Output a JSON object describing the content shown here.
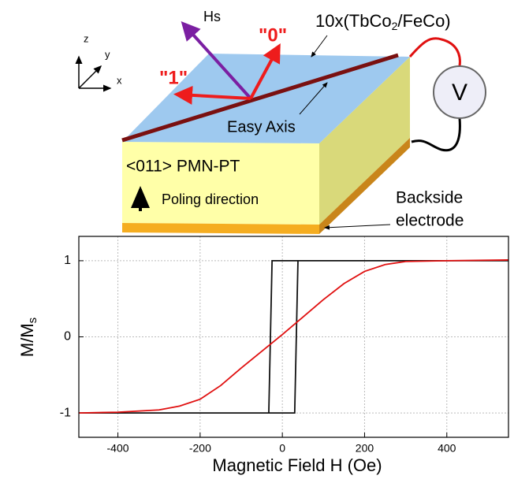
{
  "diagram": {
    "axis_z": "z",
    "axis_y": "y",
    "axis_x": "x",
    "hs_label": "Hs",
    "state_0": "\"0\"",
    "state_1": "\"1\"",
    "film_label": {
      "text": "10x(TbCo",
      "subscript": "2",
      "suffix": "/FeCo)"
    },
    "easy_axis": "Easy Axis",
    "substrate": "<011> PMN-PT",
    "poling": "Poling direction",
    "voltmeter": "V",
    "electrode_line1": "Backside",
    "electrode_line2": "electrode"
  },
  "chart_data": {
    "type": "line",
    "xlabel": "Magnetic Field H (Oe)",
    "ylabel": {
      "text": "M/M",
      "subscript": "s"
    },
    "xlim": [
      -495,
      550
    ],
    "ylim": [
      -1.32,
      1.32
    ],
    "xticks": [
      -400,
      -200,
      0,
      200,
      400
    ],
    "yticks": [
      -1,
      0,
      1
    ],
    "grid": true,
    "series": [
      {
        "color": "#111111",
        "x": [
          -495,
          30,
          38,
          550,
          -25,
          -33,
          -495
        ],
        "values": [
          -1,
          -1,
          1,
          1,
          1,
          -1,
          -1
        ]
      },
      {
        "color": "#e01010",
        "x": [
          -495,
          -400,
          -300,
          -250,
          -200,
          -150,
          -100,
          -50,
          0,
          50,
          100,
          150,
          200,
          250,
          300,
          400,
          550
        ],
        "values": [
          -1,
          -0.99,
          -0.96,
          -0.91,
          -0.82,
          -0.64,
          -0.41,
          -0.19,
          0.03,
          0.26,
          0.49,
          0.7,
          0.86,
          0.95,
          0.99,
          1,
          1.01
        ]
      }
    ]
  }
}
